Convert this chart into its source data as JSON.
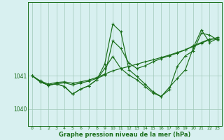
{
  "xlabel": "Graphe pression niveau de la mer (hPa)",
  "bg_color": "#d8f0f0",
  "plot_bg_color": "#d8f0f0",
  "grid_color": "#a0c8b8",
  "line_color": "#1a6e1a",
  "ylim": [
    1039.5,
    1043.2
  ],
  "xlim": [
    -0.5,
    23.5
  ],
  "yticks": [
    1040,
    1041
  ],
  "xticks": [
    0,
    1,
    2,
    3,
    4,
    5,
    6,
    7,
    8,
    9,
    10,
    11,
    12,
    13,
    14,
    15,
    16,
    17,
    18,
    19,
    20,
    21,
    22,
    23
  ],
  "series": [
    [
      1041.0,
      1040.85,
      1040.75,
      1040.8,
      1040.82,
      1040.78,
      1040.82,
      1040.87,
      1040.95,
      1041.05,
      1041.15,
      1041.22,
      1041.28,
      1041.35,
      1041.42,
      1041.48,
      1041.55,
      1041.62,
      1041.7,
      1041.78,
      1041.88,
      1041.98,
      1042.08,
      1042.15
    ],
    [
      1041.0,
      1040.82,
      1040.72,
      1040.76,
      1040.79,
      1040.73,
      1040.78,
      1040.84,
      1040.92,
      1041.02,
      1042.05,
      1041.82,
      1041.38,
      1041.22,
      1041.3,
      1041.42,
      1041.52,
      1041.6,
      1041.68,
      1041.78,
      1041.9,
      1042.0,
      1042.1,
      1042.1
    ],
    [
      1041.0,
      1040.82,
      1040.72,
      1040.76,
      1040.68,
      1040.45,
      1040.6,
      1040.7,
      1040.88,
      1041.35,
      1042.55,
      1042.32,
      1041.18,
      1040.98,
      1040.75,
      1040.52,
      1040.38,
      1040.65,
      1040.92,
      1041.18,
      1041.85,
      1042.38,
      1042.0,
      1042.12
    ],
    [
      1041.0,
      1040.82,
      1040.72,
      1040.76,
      1040.68,
      1040.45,
      1040.6,
      1040.7,
      1040.88,
      1041.22,
      1041.58,
      1041.22,
      1041.02,
      1040.88,
      1040.68,
      1040.48,
      1040.38,
      1040.58,
      1041.28,
      1041.6,
      1041.75,
      1042.28,
      1042.22,
      1042.08
    ]
  ]
}
